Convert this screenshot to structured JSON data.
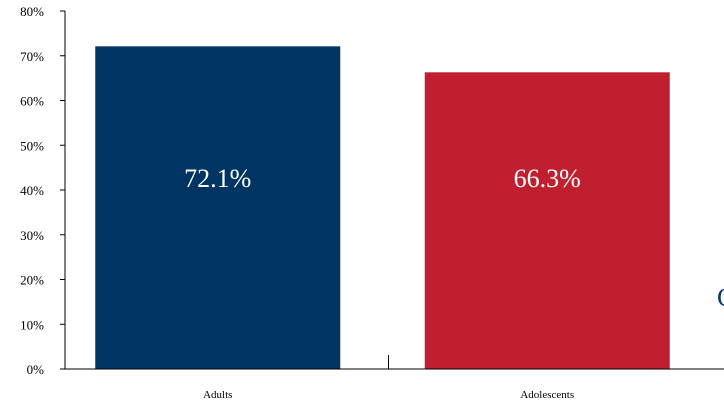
{
  "chart_data": {
    "type": "bar",
    "categories": [
      "Adults",
      "Adolescents"
    ],
    "values": [
      72.1,
      66.3
    ],
    "data_labels": [
      "72.1%",
      "66.3%"
    ],
    "colors": [
      "#003462",
      "#c01f2f"
    ],
    "ylim": [
      0,
      80
    ],
    "yticks": [
      0,
      10,
      20,
      30,
      40,
      50,
      60,
      70,
      80
    ],
    "ytick_labels": [
      "0%",
      "10%",
      "20%",
      "30%",
      "40%",
      "50%",
      "60%",
      "70%",
      "80%"
    ],
    "title": "",
    "xlabel": "",
    "ylabel": "",
    "grid": false,
    "legend": "none"
  },
  "edge_fragment": "C"
}
